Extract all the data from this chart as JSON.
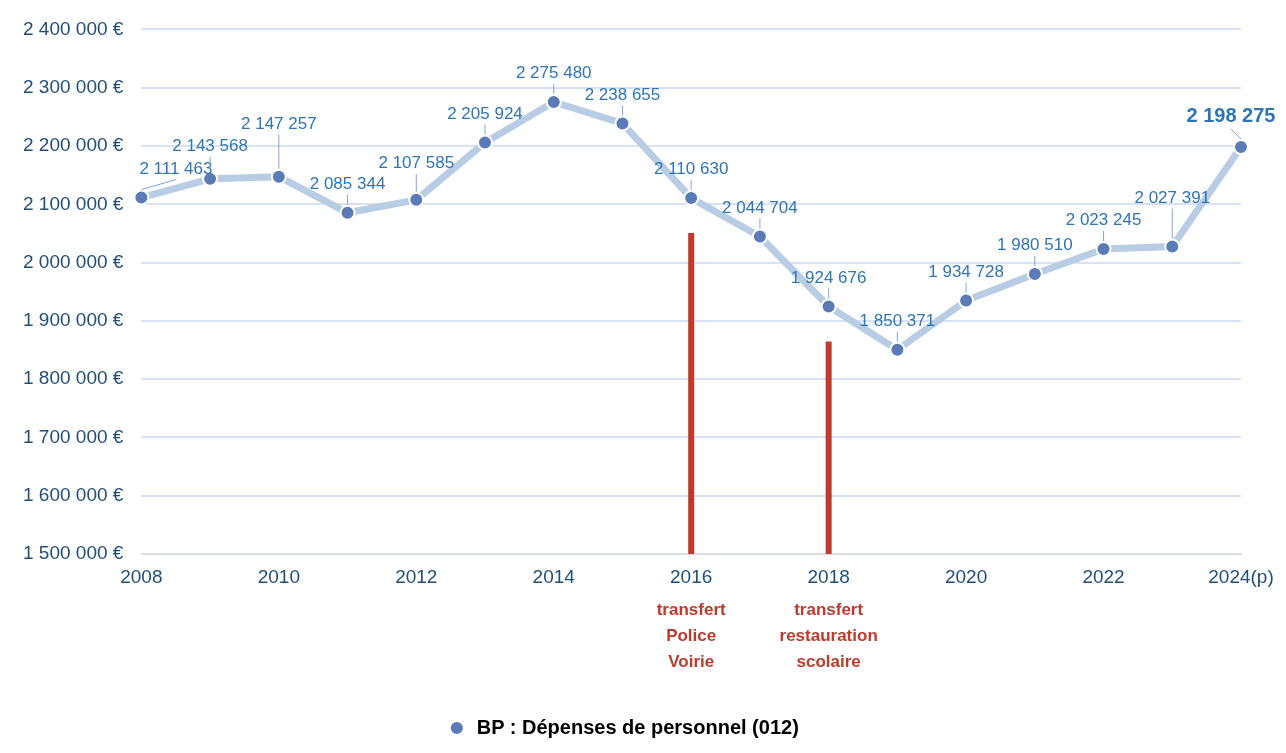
{
  "chart_data": {
    "type": "line",
    "categories": [
      "2008",
      null,
      "2010",
      null,
      "2012",
      null,
      "2014",
      null,
      "2016",
      null,
      "2018",
      null,
      "2020",
      null,
      "2022",
      null,
      "2024(p)"
    ],
    "series": [
      {
        "name": "BP : Dépenses de personnel (012)",
        "color": "#b8cce4",
        "values": [
          2111463,
          2143568,
          2147257,
          2085344,
          2107585,
          2205924,
          2275480,
          2238655,
          2110630,
          2044704,
          1924676,
          1850371,
          1934728,
          1980510,
          2023245,
          2027391,
          2198275
        ],
        "value_labels": [
          "2 111 463",
          "2 143 568",
          "2 147 257",
          "2 085 344",
          "2 107 585",
          "2 205 924",
          "2 275 480",
          "2 238 655",
          "2 110 630",
          "2 044 704",
          "1 924 676",
          "1 850 371",
          "1 934 728",
          "1 980 510",
          "2 023 245",
          "2 027 391",
          "2 198 275"
        ]
      }
    ],
    "ylim": [
      1500000,
      2400000
    ],
    "yticks": [
      {
        "value": 1500000,
        "label": "1 500 000 €"
      },
      {
        "value": 1600000,
        "label": "1 600 000 €"
      },
      {
        "value": 1700000,
        "label": "1 700 000 €"
      },
      {
        "value": 1800000,
        "label": "1 800 000 €"
      },
      {
        "value": 1900000,
        "label": "1 900 000 €"
      },
      {
        "value": 2000000,
        "label": "2 000 000 €"
      },
      {
        "value": 2100000,
        "label": "2 100 000 €"
      },
      {
        "value": 2200000,
        "label": "2 200 000 €"
      },
      {
        "value": 2300000,
        "label": "2 300 000 €"
      },
      {
        "value": 2400000,
        "label": "2 400 000 €"
      }
    ],
    "ref_lines": [
      {
        "axis": "x",
        "value": "2016",
        "label": "transfert\nPolice\nVoirie",
        "color": "#c0392b"
      },
      {
        "axis": "x",
        "value": "2018",
        "label": "transfert\nrestauration\nscolaire",
        "color": "#c0392b"
      }
    ],
    "grid": "y",
    "marker": "circle",
    "line_style": "solid",
    "legend": "bottom"
  }
}
